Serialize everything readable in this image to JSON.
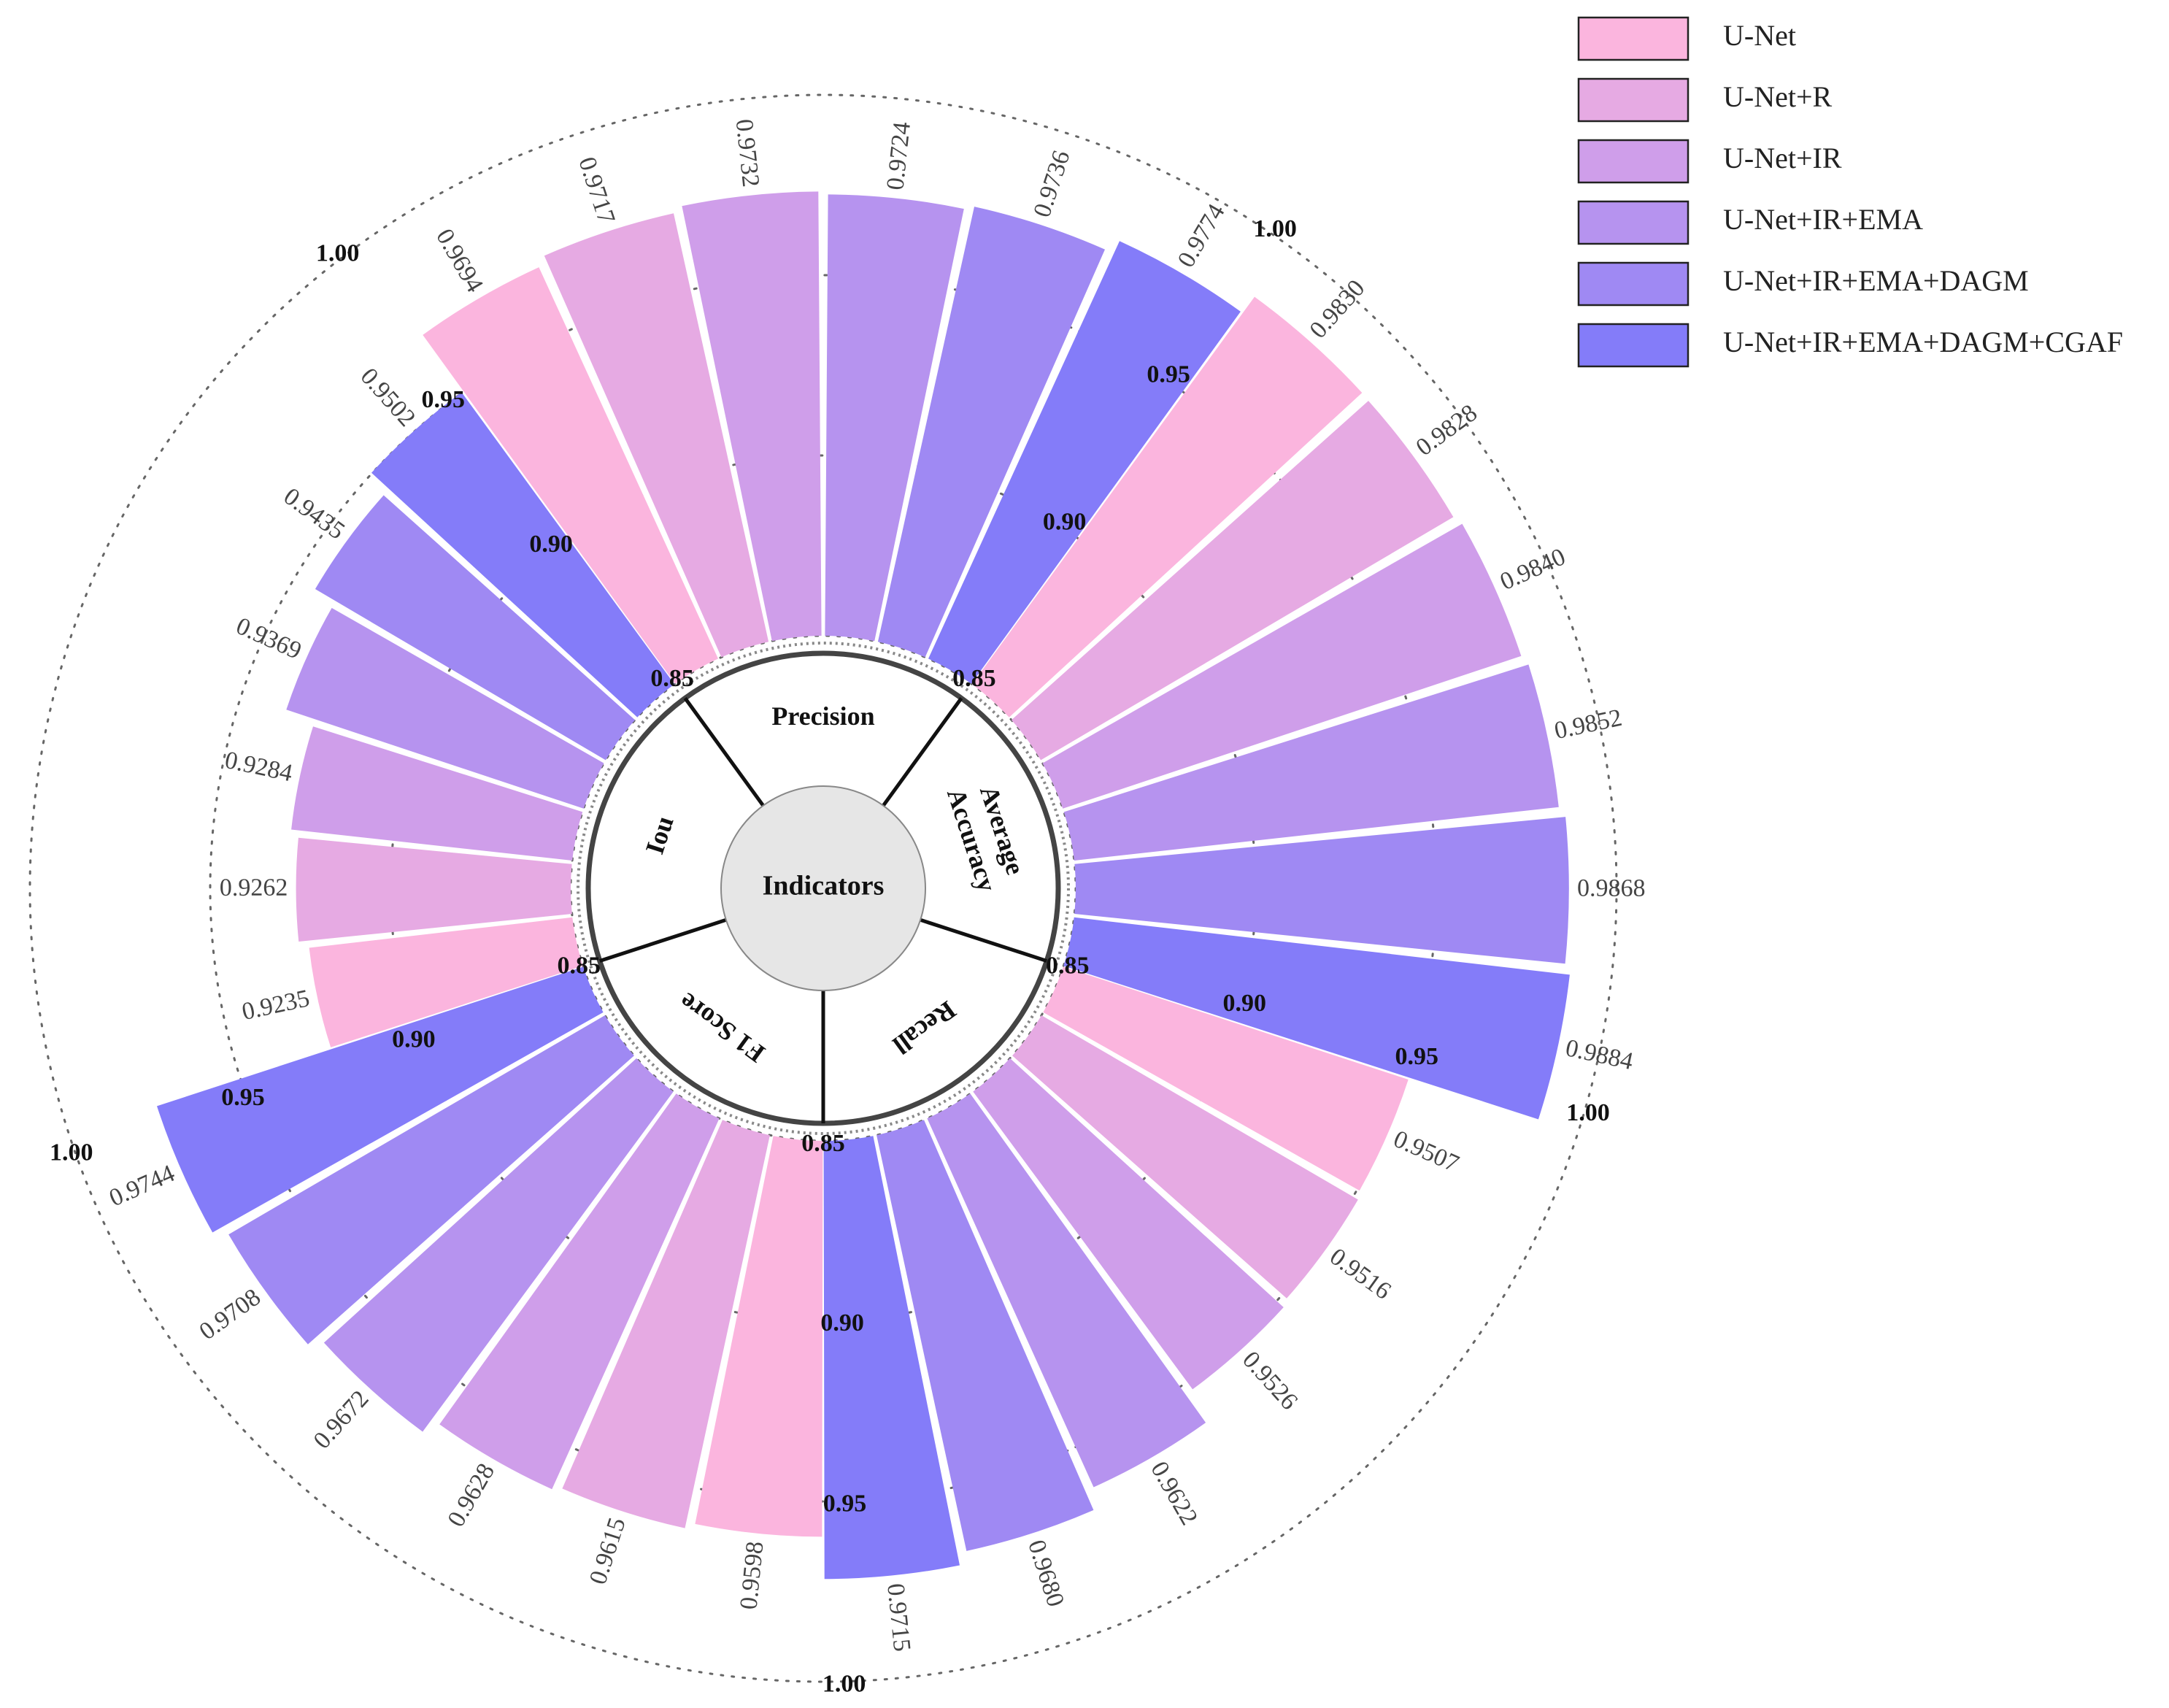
{
  "chart_data": {
    "type": "bar",
    "subtype": "circular-grouped-bar",
    "title": "",
    "center_label": "Indicators",
    "axis": {
      "min": 0.85,
      "max": 1.0,
      "ticks": [
        0.85,
        0.9,
        0.95,
        1.0
      ],
      "tick_labels": [
        "0.85",
        "0.90",
        "0.95",
        "1.00"
      ]
    },
    "series": [
      {
        "name": "U-Net",
        "color": "#fbb5de"
      },
      {
        "name": "U-Net+R",
        "color": "#e6aae3"
      },
      {
        "name": "U-Net+IR",
        "color": "#cf9eea"
      },
      {
        "name": "U-Net+IR+EMA",
        "color": "#b693ef"
      },
      {
        "name": "U-Net+IR+EMA+DAGM",
        "color": "#9f89f3"
      },
      {
        "name": "U-Net+IR+EMA+DAGM+CGAF",
        "color": "#847cf9"
      }
    ],
    "groups": [
      {
        "name": "Precision",
        "label_lines": [
          "Precision"
        ],
        "values": [
          0.9694,
          0.9717,
          0.9732,
          0.9724,
          0.9736,
          0.9774
        ],
        "value_labels": [
          "0.9694",
          "0.9717",
          "0.9732",
          "0.9724",
          "0.9736",
          "0.9774"
        ]
      },
      {
        "name": "Average Accuracy",
        "label_lines": [
          "Average",
          "Accuracy"
        ],
        "values": [
          0.983,
          0.9828,
          0.984,
          0.9852,
          0.9868,
          0.9884
        ],
        "value_labels": [
          "0.9830",
          "0.9828",
          "0.9840",
          "0.9852",
          "0.9868",
          "0.9884"
        ]
      },
      {
        "name": "Recall",
        "label_lines": [
          "Recall"
        ],
        "values": [
          0.9507,
          0.9516,
          0.9526,
          0.9622,
          0.968,
          0.9715
        ],
        "value_labels": [
          "0.9507",
          "0.9516",
          "0.9526",
          "0.9622",
          "0.9680",
          "0.9715"
        ]
      },
      {
        "name": "F1 Score",
        "label_lines": [
          "F1 Score"
        ],
        "values": [
          0.9598,
          0.9615,
          0.9628,
          0.9672,
          0.9708,
          0.9744
        ],
        "value_labels": [
          "0.9598",
          "0.9615",
          "0.9628",
          "0.9672",
          "0.9708",
          "0.9744"
        ]
      },
      {
        "name": "Iou",
        "label_lines": [
          "Iou"
        ],
        "values": [
          0.9235,
          0.9262,
          0.9284,
          0.9369,
          0.9435,
          0.9502
        ],
        "value_labels": [
          "0.9235",
          "0.9262",
          "0.9284",
          "0.9369",
          "0.9435",
          "0.9502"
        ]
      }
    ],
    "legend_position": "top-right"
  }
}
